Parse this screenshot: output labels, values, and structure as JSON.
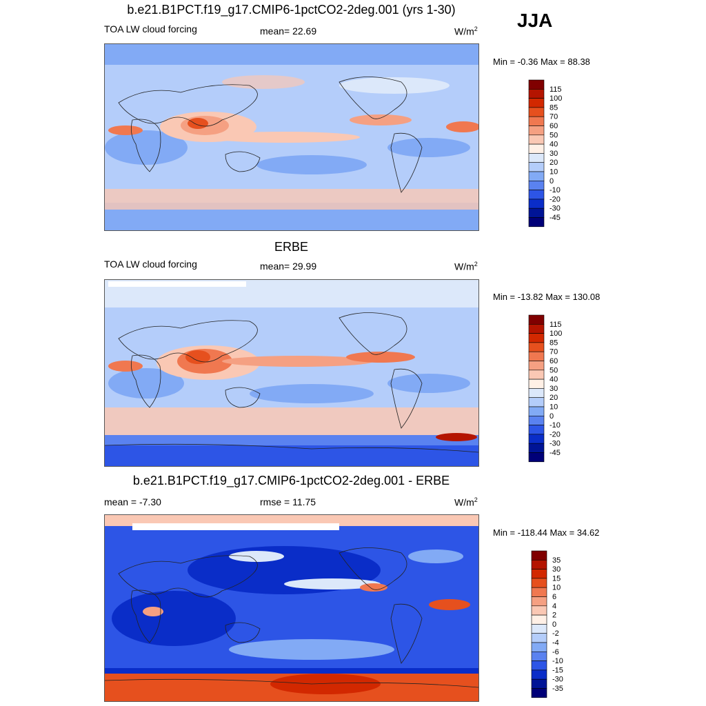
{
  "season": "JJA",
  "panels": [
    {
      "title": "b.e21.B1PCT.f19_g17.CMIP6-1pctCO2-2deg.001 (yrs 1-30)",
      "left_label": "TOA LW cloud forcing",
      "center_label": "mean=  22.69",
      "units": "W/m",
      "units_sup": "2",
      "minmax": "Min =  -0.36 Max =  88.38",
      "colorbar_labels": [
        "115",
        "100",
        "85",
        "70",
        "60",
        "50",
        "40",
        "30",
        "20",
        "10",
        "0",
        "-10",
        "-20",
        "-30",
        "-45"
      ]
    },
    {
      "title": "ERBE",
      "left_label": "TOA LW cloud forcing",
      "center_label": "mean=  29.99",
      "units": "W/m",
      "units_sup": "2",
      "minmax": "Min = -13.82 Max = 130.08",
      "colorbar_labels": [
        "115",
        "100",
        "85",
        "70",
        "60",
        "50",
        "40",
        "30",
        "20",
        "10",
        "0",
        "-10",
        "-20",
        "-30",
        "-45"
      ]
    },
    {
      "title": "b.e21.B1PCT.f19_g17.CMIP6-1pctCO2-2deg.001 - ERBE",
      "left_label": "mean =  -7.30",
      "center_label": "rmse =  11.75",
      "units": "W/m",
      "units_sup": "2",
      "minmax": "Min = -118.44 Max =  34.62",
      "colorbar_labels": [
        "35",
        "30",
        "15",
        "10",
        "6",
        "4",
        "2",
        "0",
        "-2",
        "-4",
        "-6",
        "-10",
        "-15",
        "-30",
        "-35"
      ]
    }
  ],
  "colors": {
    "colorbar_scale": [
      "#800000",
      "#b41400",
      "#d22800",
      "#e6501e",
      "#f07850",
      "#f5a082",
      "#fac8b4",
      "#fff0e6",
      "#dce8fa",
      "#b4cdfa",
      "#82aaf5",
      "#5a82f0",
      "#2d55e6",
      "#0a2dc8",
      "#001496",
      "#000078"
    ],
    "map_border": "#555555",
    "coast": "#222222"
  }
}
